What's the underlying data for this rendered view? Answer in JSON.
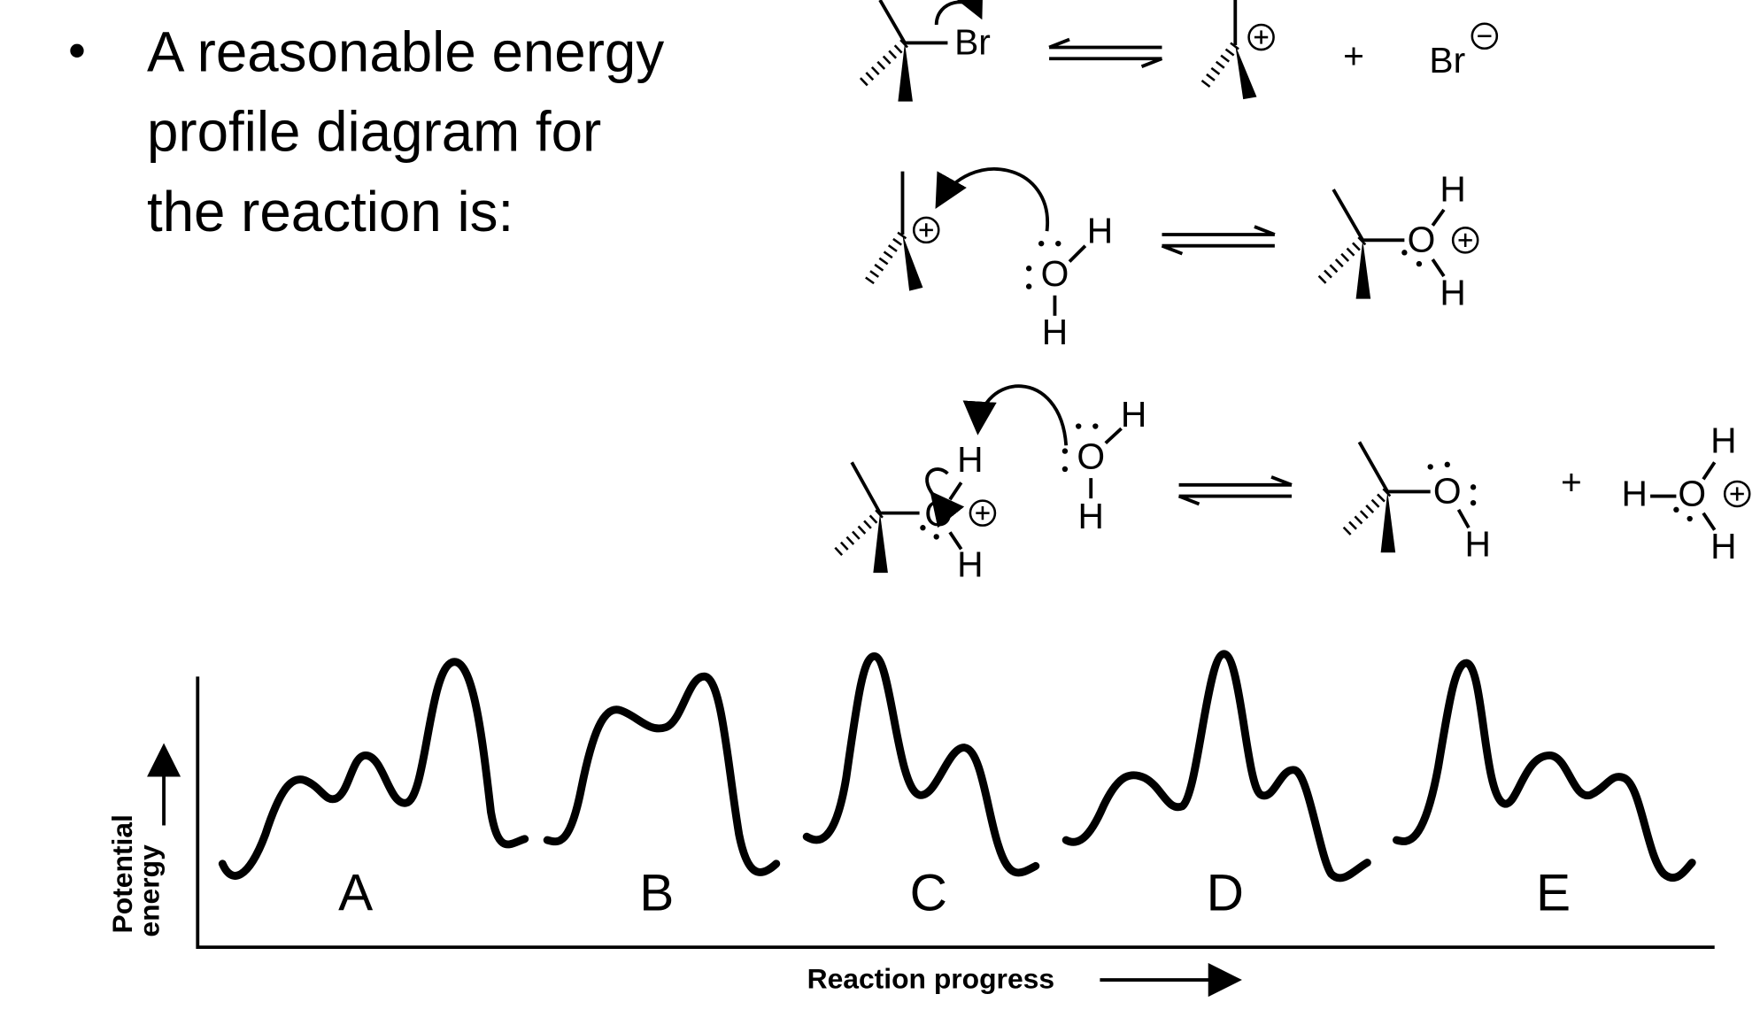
{
  "bullet_lines": [
    "A reasonable energy",
    "profile diagram for",
    "the reaction is:"
  ],
  "scheme": {
    "step_1": {
      "labels": [
        "Br",
        "+",
        "Br"
      ]
    },
    "step_2": {
      "labels": [
        "H",
        "O",
        "H",
        "H",
        "O",
        "H"
      ]
    },
    "step_3": {
      "labels": [
        "H",
        "O",
        "H",
        "H",
        "O",
        "H",
        "O",
        "H",
        "+",
        "H",
        "H",
        "O",
        "H"
      ]
    }
  },
  "energy_diagram": {
    "options": [
      "A",
      "B",
      "C",
      "D",
      "E"
    ],
    "y_axis_label": [
      "Potential",
      "energy"
    ],
    "x_axis_label": "Reaction progress"
  }
}
